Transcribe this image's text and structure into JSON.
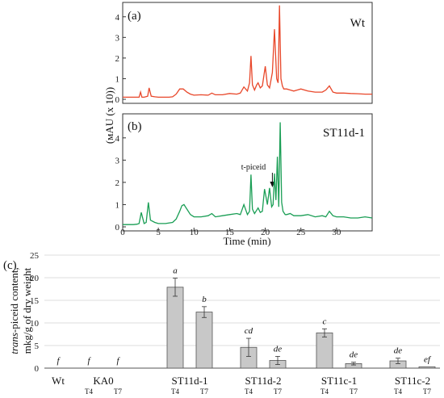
{
  "chart_data": [
    {
      "type": "line",
      "panel_label": "(a)",
      "sample": "Wt",
      "ylim": [
        0,
        4.5
      ],
      "yticks": [
        "0",
        "1",
        "2",
        "3",
        "4"
      ],
      "color": "#e8472a",
      "x": [
        0.0,
        0.5,
        1.0,
        1.5,
        2.0,
        2.3,
        2.5,
        2.7,
        3.0,
        3.5,
        3.7,
        4.0,
        4.5,
        5.0,
        5.5,
        6.0,
        6.5,
        7.0,
        7.5,
        8.0,
        8.5,
        9.0,
        9.5,
        10.0,
        11.0,
        12.0,
        12.5,
        13.0,
        14.0,
        15.0,
        16.0,
        16.5,
        17.0,
        17.5,
        17.8,
        18.0,
        18.2,
        18.5,
        18.8,
        19.0,
        19.3,
        19.6,
        20.0,
        20.3,
        20.6,
        21.0,
        21.3,
        21.6,
        21.8,
        22.0,
        22.2,
        22.4,
        22.6,
        23.0,
        23.5,
        24.0,
        24.5,
        25.0,
        26.0,
        27.0,
        28.0,
        28.5,
        29.0,
        29.5,
        30.0,
        31.0,
        32.0,
        33.0,
        34.0,
        35.0
      ],
      "y": [
        0.1,
        0.1,
        0.1,
        0.1,
        0.1,
        0.1,
        0.35,
        0.1,
        0.1,
        0.15,
        0.55,
        0.15,
        0.12,
        0.1,
        0.1,
        0.1,
        0.1,
        0.12,
        0.25,
        0.5,
        0.5,
        0.35,
        0.25,
        0.2,
        0.22,
        0.2,
        0.3,
        0.22,
        0.22,
        0.28,
        0.25,
        0.3,
        0.6,
        0.4,
        0.8,
        2.1,
        0.7,
        0.45,
        0.7,
        0.8,
        0.55,
        0.65,
        1.6,
        0.7,
        0.55,
        1.3,
        3.4,
        1.0,
        0.8,
        4.55,
        1.0,
        0.65,
        0.5,
        0.5,
        0.45,
        0.4,
        0.45,
        0.5,
        0.4,
        0.35,
        0.35,
        0.45,
        0.65,
        0.35,
        0.3,
        0.3,
        0.28,
        0.27,
        0.25,
        0.25
      ]
    },
    {
      "type": "line",
      "panel_label": "(b)",
      "sample": "ST11d-1",
      "annotation": "t-piceid",
      "annotation_x": 21.0,
      "ylim": [
        0,
        4.9
      ],
      "yticks": [
        "0",
        "1",
        "2",
        "3",
        "4"
      ],
      "xlim": [
        0,
        35
      ],
      "xticks": [
        "0",
        "5",
        "10",
        "15",
        "20",
        "25",
        "30"
      ],
      "xlabel": "Time (min)",
      "color": "#1a9e55",
      "x": [
        0.0,
        0.5,
        1.0,
        1.5,
        2.0,
        2.3,
        2.6,
        3.0,
        3.3,
        3.6,
        3.9,
        4.5,
        5.0,
        6.0,
        7.0,
        7.5,
        8.0,
        8.3,
        8.6,
        9.0,
        9.5,
        10.0,
        11.0,
        12.0,
        12.5,
        13.0,
        14.0,
        15.0,
        16.0,
        16.5,
        17.0,
        17.5,
        17.8,
        18.0,
        18.2,
        18.5,
        18.8,
        19.0,
        19.3,
        19.6,
        19.9,
        20.1,
        20.3,
        20.6,
        20.9,
        21.1,
        21.3,
        21.5,
        21.7,
        21.9,
        22.1,
        22.3,
        22.5,
        22.8,
        23.0,
        23.5,
        24.0,
        25.0,
        26.0,
        27.0,
        28.0,
        28.5,
        29.0,
        29.5,
        30.0,
        31.0,
        32.0,
        33.0,
        34.0,
        35.0
      ],
      "y": [
        0.1,
        0.1,
        0.1,
        0.1,
        0.12,
        0.15,
        0.65,
        0.15,
        0.2,
        1.1,
        0.3,
        0.2,
        0.15,
        0.15,
        0.2,
        0.35,
        0.7,
        0.95,
        1.0,
        0.8,
        0.55,
        0.45,
        0.45,
        0.5,
        0.6,
        0.45,
        0.5,
        0.55,
        0.6,
        0.55,
        1.0,
        0.55,
        0.7,
        2.35,
        0.8,
        0.6,
        0.75,
        0.85,
        0.65,
        0.7,
        1.7,
        1.35,
        1.0,
        1.75,
        0.9,
        1.0,
        2.4,
        1.2,
        3.15,
        0.9,
        4.7,
        1.1,
        0.7,
        0.55,
        0.55,
        0.6,
        0.5,
        0.5,
        0.55,
        0.45,
        0.5,
        0.45,
        0.7,
        0.5,
        0.45,
        0.45,
        0.4,
        0.4,
        0.45,
        0.4
      ]
    },
    {
      "type": "bar",
      "panel_label": "(c)",
      "ylabel_line1": "trans-piceid content,",
      "ylabel_line1_italic": "trans",
      "ylabel_line1_rest": "-piceid content,",
      "ylabel_line2": "mkg/g of dry weight",
      "ylim": [
        0,
        25
      ],
      "yticks": [
        "0",
        "5",
        "10",
        "15",
        "20",
        "25"
      ],
      "groups": [
        "Wt",
        "KA0",
        "ST11d-1",
        "ST11d-2",
        "ST11c-1",
        "ST11c-2"
      ],
      "subcategories": [
        "T4",
        "T7"
      ],
      "bars": [
        {
          "group": 0,
          "sub": "",
          "value": 0,
          "error": 0,
          "letter": "f"
        },
        {
          "group": 1,
          "sub": "T4",
          "value": 0,
          "error": 0,
          "letter": "f"
        },
        {
          "group": 1,
          "sub": "T7",
          "value": 0,
          "error": 0,
          "letter": "f"
        },
        {
          "group": 2,
          "sub": "T4",
          "value": 17.9,
          "error": 2.0,
          "letter": "a"
        },
        {
          "group": 2,
          "sub": "T7",
          "value": 12.4,
          "error": 1.2,
          "letter": "b"
        },
        {
          "group": 3,
          "sub": "T4",
          "value": 4.6,
          "error": 2.0,
          "letter": "cd"
        },
        {
          "group": 3,
          "sub": "T7",
          "value": 1.7,
          "error": 0.9,
          "letter": "de"
        },
        {
          "group": 4,
          "sub": "T4",
          "value": 7.8,
          "error": 0.9,
          "letter": "c"
        },
        {
          "group": 4,
          "sub": "T7",
          "value": 1.0,
          "error": 0.3,
          "letter": "de"
        },
        {
          "group": 5,
          "sub": "T4",
          "value": 1.6,
          "error": 0.6,
          "letter": "de"
        },
        {
          "group": 5,
          "sub": "T7",
          "value": 0.3,
          "error": 0.0,
          "letter": "ef"
        }
      ],
      "bar_color": "#c8c8c8"
    }
  ],
  "shared_ylabel": "(мAU (x 10))"
}
